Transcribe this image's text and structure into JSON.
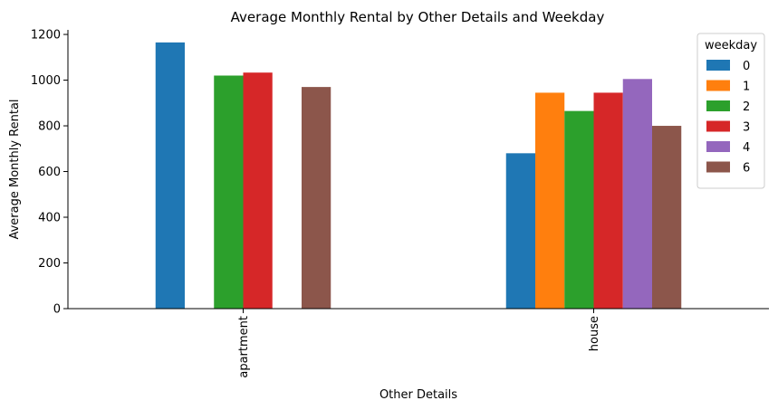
{
  "chart_data": {
    "type": "bar",
    "title": "Average Monthly Rental by Other Details and Weekday",
    "xlabel": "Other Details",
    "ylabel": "Average Monthly Rental",
    "categories": [
      "apartment",
      "house"
    ],
    "ylim": [
      0,
      1220
    ],
    "yticks": [
      "0",
      "200",
      "400",
      "600",
      "800",
      "1000",
      "1200"
    ],
    "grid": false,
    "legend": {
      "title": "weekday",
      "placement": "top-right"
    },
    "series": [
      {
        "name": "0",
        "color": "#1f77b4",
        "values": [
          1165,
          680
        ]
      },
      {
        "name": "1",
        "color": "#ff7f0e",
        "values": [
          null,
          945
        ]
      },
      {
        "name": "2",
        "color": "#2ca02c",
        "values": [
          1020,
          865
        ]
      },
      {
        "name": "3",
        "color": "#d62728",
        "values": [
          1033,
          945
        ]
      },
      {
        "name": "4",
        "color": "#9467bd",
        "values": [
          null,
          1005
        ]
      },
      {
        "name": "6",
        "color": "#8c564b",
        "values": [
          970,
          800
        ]
      }
    ]
  }
}
